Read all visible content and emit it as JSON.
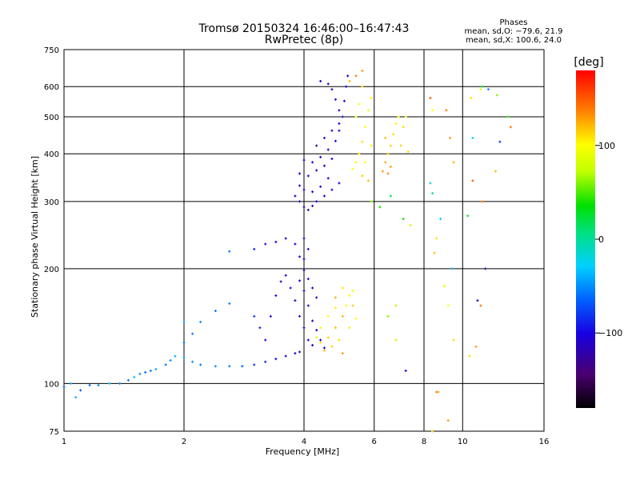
{
  "chart_data": {
    "type": "scatter",
    "title": "Tromsø 20150324 16:46:00–16:47:43",
    "subtitle": "RwPretec (8p)",
    "xlabel": "Frequency [MHz]",
    "ylabel": "Stationary phase Virtual Height [km]",
    "x_scale": "log",
    "y_scale": "log",
    "xlim": [
      1,
      16
    ],
    "ylim": [
      75,
      750
    ],
    "x_ticks": [
      "1",
      "2",
      "4",
      "6",
      "8",
      "10",
      "16"
    ],
    "y_ticks": [
      "75",
      "100",
      "200",
      "300",
      "400",
      "500",
      "600",
      "750"
    ],
    "grid": true,
    "phase_box": {
      "title": "Phases",
      "line1": "mean, sd,O: −79.6, 21.9",
      "line2": "mean, sd,X: 100.6, 24.0"
    },
    "colorbar": {
      "label": "[deg]",
      "range": [
        -180,
        180
      ],
      "ticks": [
        "100",
        "0",
        "−100"
      ]
    },
    "series": [
      {
        "mode": "O",
        "points": [
          [
            1.0,
            98,
            -60
          ],
          [
            1.04,
            100,
            -45
          ],
          [
            1.07,
            92,
            -40
          ],
          [
            1.1,
            96,
            -70
          ],
          [
            1.16,
            99,
            -60
          ],
          [
            1.22,
            99,
            -50
          ],
          [
            1.3,
            100,
            -40
          ],
          [
            1.38,
            100,
            -55
          ],
          [
            1.45,
            102,
            -60
          ],
          [
            1.5,
            104,
            -35
          ],
          [
            1.55,
            106,
            -50
          ],
          [
            1.6,
            107,
            -60
          ],
          [
            1.65,
            108,
            -55
          ],
          [
            1.7,
            109,
            -40
          ],
          [
            1.8,
            112,
            -60
          ],
          [
            1.85,
            115,
            -50
          ],
          [
            1.9,
            118,
            -40
          ],
          [
            2.0,
            117,
            -45
          ],
          [
            2.1,
            114,
            -50
          ],
          [
            2.2,
            112,
            -55
          ],
          [
            2.4,
            111,
            -50
          ],
          [
            2.6,
            111,
            -55
          ],
          [
            2.8,
            111,
            -65
          ],
          [
            3.0,
            112,
            -80
          ],
          [
            3.2,
            114,
            -90
          ],
          [
            3.4,
            116,
            -95
          ],
          [
            3.6,
            118,
            -100
          ],
          [
            3.8,
            120,
            -110
          ],
          [
            3.9,
            121,
            -115
          ],
          [
            2.0,
            128,
            -60
          ],
          [
            2.1,
            135,
            -55
          ],
          [
            2.2,
            145,
            -50
          ],
          [
            2.4,
            155,
            -60
          ],
          [
            2.6,
            162,
            -55
          ],
          [
            2.0,
            145,
            -45
          ],
          [
            3.0,
            150,
            -80
          ],
          [
            3.1,
            140,
            -90
          ],
          [
            3.2,
            130,
            -95
          ],
          [
            3.3,
            150,
            -100
          ],
          [
            3.4,
            170,
            -100
          ],
          [
            3.5,
            185,
            -110
          ],
          [
            3.6,
            192,
            -105
          ],
          [
            3.7,
            178,
            -110
          ],
          [
            3.8,
            165,
            -115
          ],
          [
            3.9,
            150,
            -110
          ],
          [
            4.0,
            140,
            -115
          ],
          [
            4.1,
            130,
            -112
          ],
          [
            4.2,
            126,
            -110
          ],
          [
            3.9,
            186,
            -105
          ],
          [
            4.0,
            175,
            -110
          ],
          [
            4.1,
            160,
            -115
          ],
          [
            4.2,
            146,
            -110
          ],
          [
            4.3,
            138,
            -105
          ],
          [
            4.4,
            130,
            -110
          ],
          [
            4.5,
            124,
            -112
          ],
          [
            4.0,
            198,
            -108
          ],
          [
            4.1,
            188,
            -112
          ],
          [
            4.2,
            178,
            -108
          ],
          [
            4.3,
            168,
            -110
          ],
          [
            2.6,
            222,
            -60
          ],
          [
            3.0,
            225,
            -90
          ],
          [
            3.2,
            232,
            -95
          ],
          [
            3.4,
            235,
            -100
          ],
          [
            3.6,
            240,
            -110
          ],
          [
            3.8,
            232,
            -105
          ],
          [
            3.9,
            215,
            -110
          ],
          [
            4.0,
            212,
            -115
          ],
          [
            4.0,
            240,
            -112
          ],
          [
            4.1,
            225,
            -110
          ],
          [
            3.8,
            310,
            -110
          ],
          [
            3.9,
            300,
            -115
          ],
          [
            4.0,
            290,
            -120
          ],
          [
            4.1,
            285,
            -118
          ],
          [
            4.2,
            292,
            -115
          ],
          [
            4.3,
            300,
            -110
          ],
          [
            4.5,
            310,
            -108
          ],
          [
            4.7,
            322,
            -105
          ],
          [
            4.9,
            335,
            -100
          ],
          [
            3.9,
            330,
            -112
          ],
          [
            4.0,
            322,
            -115
          ],
          [
            4.2,
            318,
            -110
          ],
          [
            4.4,
            328,
            -108
          ],
          [
            4.6,
            345,
            -105
          ],
          [
            3.9,
            355,
            -110
          ],
          [
            4.1,
            350,
            -112
          ],
          [
            4.3,
            362,
            -110
          ],
          [
            4.5,
            372,
            -105
          ],
          [
            4.7,
            388,
            -102
          ],
          [
            4.0,
            385,
            -115
          ],
          [
            4.2,
            380,
            -110
          ],
          [
            4.4,
            392,
            -108
          ],
          [
            4.6,
            410,
            -104
          ],
          [
            4.8,
            432,
            -100
          ],
          [
            4.9,
            460,
            -102
          ],
          [
            5.0,
            500,
            -104
          ],
          [
            5.05,
            550,
            -105
          ],
          [
            5.1,
            600,
            -108
          ],
          [
            5.15,
            640,
            -110
          ],
          [
            4.6,
            610,
            -112
          ],
          [
            4.4,
            620,
            -108
          ],
          [
            4.7,
            590,
            -110
          ],
          [
            4.8,
            555,
            -105
          ],
          [
            4.9,
            520,
            -108
          ],
          [
            4.3,
            420,
            -110
          ],
          [
            4.5,
            440,
            -108
          ],
          [
            4.7,
            460,
            -105
          ],
          [
            4.9,
            480,
            -103
          ]
        ]
      },
      {
        "mode": "X",
        "points": [
          [
            4.4,
            128,
            110
          ],
          [
            4.6,
            132,
            115
          ],
          [
            4.8,
            140,
            120
          ],
          [
            5.0,
            150,
            125
          ],
          [
            5.1,
            160,
            100
          ],
          [
            5.2,
            170,
            95
          ],
          [
            5.3,
            175,
            90
          ],
          [
            5.0,
            178,
            110
          ],
          [
            4.6,
            150,
            100
          ],
          [
            4.8,
            158,
            105
          ],
          [
            4.4,
            140,
            95
          ],
          [
            4.3,
            132,
            85
          ],
          [
            4.5,
            122,
            120
          ],
          [
            4.7,
            125,
            115
          ],
          [
            4.9,
            130,
            110
          ],
          [
            5.2,
            140,
            105
          ],
          [
            5.0,
            120,
            130
          ],
          [
            5.4,
            148,
            100
          ],
          [
            5.3,
            160,
            115
          ],
          [
            4.8,
            168,
            125
          ],
          [
            5.3,
            365,
            95
          ],
          [
            5.4,
            380,
            100
          ],
          [
            5.5,
            400,
            105
          ],
          [
            5.6,
            430,
            110
          ],
          [
            5.7,
            470,
            100
          ],
          [
            5.8,
            520,
            95
          ],
          [
            5.9,
            560,
            105
          ],
          [
            5.6,
            350,
            115
          ],
          [
            5.8,
            340,
            120
          ],
          [
            5.7,
            380,
            100
          ],
          [
            5.9,
            420,
            105
          ],
          [
            5.6,
            600,
            110
          ],
          [
            5.4,
            500,
            95
          ],
          [
            5.5,
            540,
            100
          ],
          [
            6.3,
            360,
            130
          ],
          [
            6.4,
            380,
            125
          ],
          [
            6.5,
            400,
            120
          ],
          [
            6.6,
            420,
            115
          ],
          [
            6.7,
            450,
            110
          ],
          [
            6.8,
            480,
            105
          ],
          [
            6.9,
            500,
            100
          ],
          [
            6.5,
            355,
            135
          ],
          [
            6.6,
            370,
            128
          ],
          [
            7.0,
            420,
            115
          ],
          [
            7.1,
            470,
            110
          ],
          [
            7.2,
            500,
            105
          ],
          [
            7.3,
            405,
            112
          ],
          [
            6.4,
            440,
            120
          ],
          [
            5.4,
            640,
            140
          ],
          [
            5.6,
            660,
            130
          ],
          [
            5.2,
            620,
            120
          ],
          [
            8.3,
            560,
            150
          ],
          [
            9.1,
            520,
            140
          ],
          [
            9.3,
            440,
            130
          ],
          [
            9.5,
            380,
            120
          ],
          [
            10.5,
            560,
            110
          ],
          [
            10.6,
            340,
            150
          ],
          [
            11.2,
            300,
            140
          ],
          [
            12.1,
            360,
            120
          ],
          [
            13.2,
            470,
            140
          ],
          [
            8.6,
            240,
            110
          ],
          [
            8.5,
            220,
            120
          ],
          [
            9.0,
            180,
            90
          ],
          [
            9.2,
            160,
            100
          ],
          [
            9.5,
            130,
            110
          ],
          [
            8.7,
            95,
            120
          ],
          [
            9.2,
            80,
            130
          ],
          [
            10.4,
            118,
            110
          ],
          [
            10.8,
            125,
            130
          ],
          [
            11.1,
            160,
            140
          ],
          [
            8.4,
            520,
            100
          ],
          [
            8.3,
            335,
            -20
          ],
          [
            8.4,
            315,
            0
          ],
          [
            8.8,
            270,
            -30
          ],
          [
            9.4,
            200,
            -40
          ],
          [
            10.3,
            275,
            20
          ],
          [
            11.6,
            590,
            -50
          ],
          [
            12.2,
            570,
            60
          ],
          [
            13.0,
            500,
            40
          ],
          [
            12.4,
            430,
            -80
          ],
          [
            7.4,
            260,
            80
          ],
          [
            7.1,
            270,
            40
          ],
          [
            6.6,
            310,
            20
          ],
          [
            6.8,
            160,
            70
          ],
          [
            6.5,
            150,
            60
          ],
          [
            6.8,
            130,
            80
          ],
          [
            7.2,
            108,
            -110
          ],
          [
            8.4,
            75,
            120
          ],
          [
            8.6,
            95,
            140
          ],
          [
            10.6,
            440,
            -20
          ],
          [
            11.2,
            600,
            30
          ],
          [
            11.4,
            200,
            -130
          ],
          [
            10.9,
            165,
            -120
          ],
          [
            11.1,
            590,
            90
          ],
          [
            5.9,
            300,
            60
          ],
          [
            6.2,
            290,
            40
          ]
        ]
      }
    ]
  }
}
